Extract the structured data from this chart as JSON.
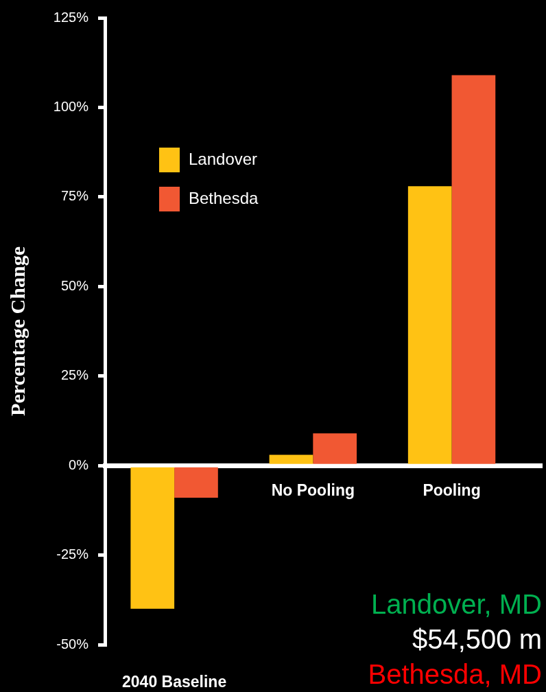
{
  "chart_data": {
    "type": "bar",
    "ylabel": "Percentage Change",
    "categories": [
      "2040 Baseline",
      "No Pooling",
      "Pooling"
    ],
    "series": [
      {
        "name": "Landover",
        "color": "#ffc214",
        "values": [
          -40,
          3,
          78
        ]
      },
      {
        "name": "Bethesda",
        "color": "#f15833",
        "values": [
          -9,
          9,
          109
        ]
      }
    ],
    "ylim": [
      -50,
      125
    ],
    "yticks": [
      {
        "value": -50,
        "label": "-50%"
      },
      {
        "value": -25,
        "label": "-25%"
      },
      {
        "value": 0,
        "label": "0%"
      },
      {
        "value": 25,
        "label": "25%"
      },
      {
        "value": 50,
        "label": "50%"
      },
      {
        "value": 75,
        "label": "75%"
      },
      {
        "value": 100,
        "label": "100%"
      },
      {
        "value": 125,
        "label": "125%"
      }
    ],
    "legend": "top left",
    "annotations": [
      "Landover, MD",
      "$54,500 m",
      "Bethesda, MD"
    ]
  }
}
